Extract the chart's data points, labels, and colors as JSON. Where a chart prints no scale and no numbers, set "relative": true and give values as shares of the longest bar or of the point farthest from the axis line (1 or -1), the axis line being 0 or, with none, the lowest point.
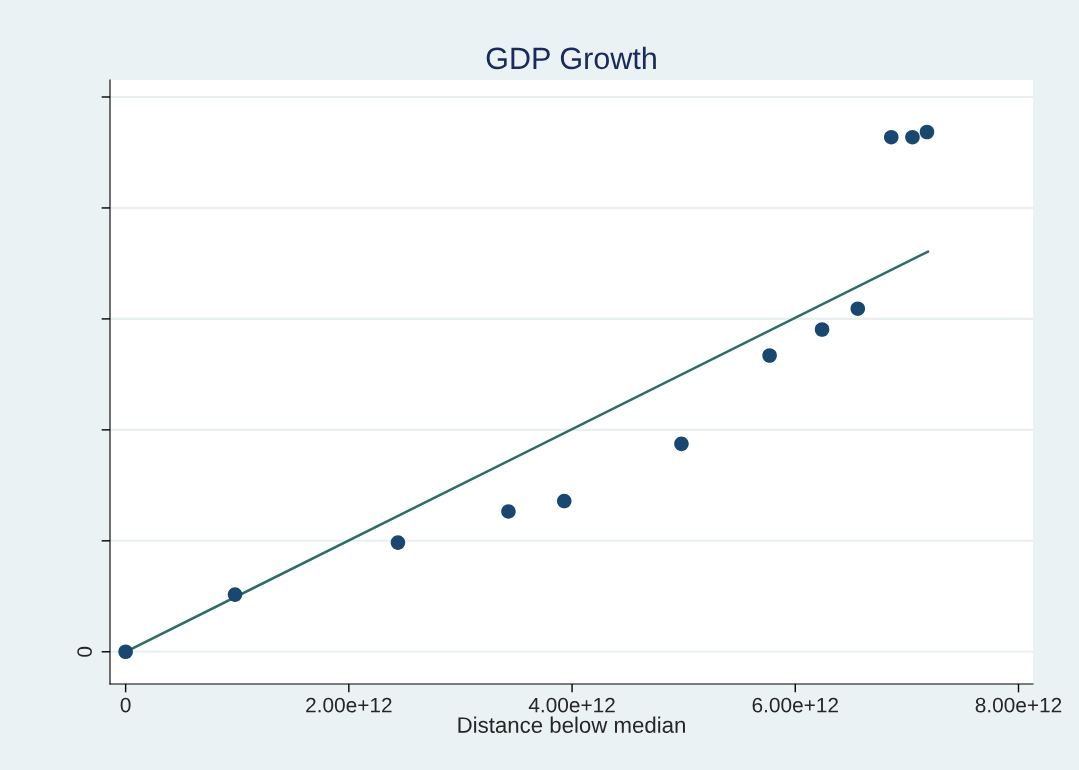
{
  "chart_data": {
    "type": "scatter",
    "title": "GDP Growth",
    "xlabel": "Distance below median",
    "relative": true,
    "x": [
      0,
      980000000000.0,
      2440000000000.0,
      3430000000000.0,
      3930000000000.0,
      4980000000000.0,
      5770000000000.0,
      6240000000000.0,
      6560000000000.0,
      6860000000000.0,
      7050000000000.0,
      7180000000000.0
    ],
    "series": [
      {
        "color": "#1a476f",
        "marker": "circle",
        "values": [
          0,
          0.11,
          0.21,
          0.27,
          0.29,
          0.4,
          0.57,
          0.62,
          0.66,
          0.99,
          0.99,
          1.0
        ]
      },
      {
        "type": "line",
        "color": "#2d6d66",
        "x": [
          0,
          7190000000000.0
        ],
        "values": [
          0,
          0.77
        ],
        "line_style": "solid",
        "marker": "none"
      }
    ],
    "xlim": [
      -140000000000.0,
      8130000000000.0
    ],
    "xticks": [
      {
        "value": 0,
        "label": "0"
      },
      {
        "value": 2000000000000.0,
        "label": "2.00e+12"
      },
      {
        "value": 4000000000000.0,
        "label": "4.00e+12"
      },
      {
        "value": 6000000000000.0,
        "label": "6.00e+12"
      },
      {
        "value": 8000000000000.0,
        "label": "8.00e+12"
      }
    ],
    "annotations": [
      "0"
    ],
    "grid": "y"
  }
}
